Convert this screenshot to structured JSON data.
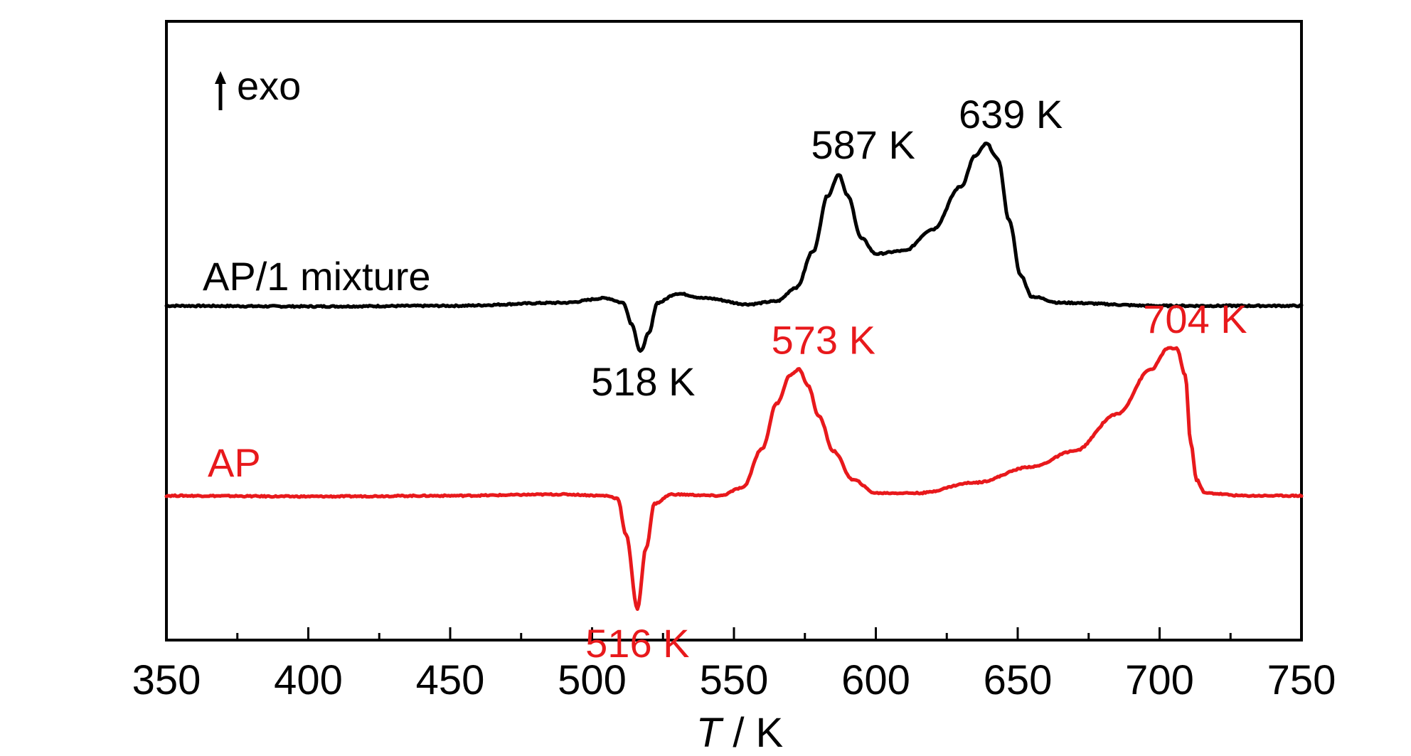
{
  "chart_data": {
    "type": "line",
    "title": "",
    "xlabel_italic": "T",
    "xlabel_rest": " / K",
    "ylabel": "",
    "xlim": [
      350,
      750
    ],
    "xticks": [
      350,
      400,
      450,
      500,
      550,
      600,
      650,
      700,
      750
    ],
    "x_minor_step": 25,
    "grid": false,
    "legend": "none",
    "direction_note": "exo",
    "series": [
      {
        "name": "AP/1 mixture",
        "color": "#000000",
        "baseline": 0,
        "points": [
          [
            350,
            0
          ],
          [
            400,
            -0.2
          ],
          [
            450,
            0
          ],
          [
            490,
            1
          ],
          [
            505,
            2.5
          ],
          [
            511,
            1
          ],
          [
            514,
            -6
          ],
          [
            517,
            -15
          ],
          [
            520,
            -9
          ],
          [
            523,
            1
          ],
          [
            530,
            4
          ],
          [
            540,
            2.5
          ],
          [
            555,
            0.5
          ],
          [
            565,
            1.5
          ],
          [
            572,
            6
          ],
          [
            578,
            18
          ],
          [
            583,
            36
          ],
          [
            587,
            43
          ],
          [
            590,
            36
          ],
          [
            595,
            22
          ],
          [
            600,
            17
          ],
          [
            610,
            18
          ],
          [
            620,
            25
          ],
          [
            630,
            39
          ],
          [
            635,
            49
          ],
          [
            639,
            53
          ],
          [
            643,
            48
          ],
          [
            647,
            28
          ],
          [
            651,
            10
          ],
          [
            655,
            3
          ],
          [
            665,
            1
          ],
          [
            700,
            0
          ],
          [
            750,
            0
          ]
        ],
        "annotations": [
          {
            "x": 518,
            "label": "518 K",
            "type": "trough"
          },
          {
            "x": 587,
            "label": "587 K",
            "type": "peak"
          },
          {
            "x": 639,
            "label": "639 K",
            "type": "peak"
          }
        ]
      },
      {
        "name": "AP",
        "color": "#e8191c",
        "baseline": 0,
        "points": [
          [
            350,
            0
          ],
          [
            400,
            -0.3
          ],
          [
            450,
            0
          ],
          [
            490,
            0.5
          ],
          [
            505,
            0
          ],
          [
            509,
            -1
          ],
          [
            512,
            -15
          ],
          [
            516,
            -43
          ],
          [
            519,
            -20
          ],
          [
            522,
            -3
          ],
          [
            528,
            0.5
          ],
          [
            545,
            0
          ],
          [
            553,
            3
          ],
          [
            560,
            18
          ],
          [
            565,
            35
          ],
          [
            570,
            46
          ],
          [
            573,
            48
          ],
          [
            576,
            42
          ],
          [
            580,
            30
          ],
          [
            585,
            17
          ],
          [
            592,
            6
          ],
          [
            600,
            1
          ],
          [
            615,
            1
          ],
          [
            635,
            5
          ],
          [
            655,
            11
          ],
          [
            670,
            17
          ],
          [
            685,
            31
          ],
          [
            697,
            48
          ],
          [
            703,
            56
          ],
          [
            706,
            56
          ],
          [
            709,
            46
          ],
          [
            711,
            20
          ],
          [
            713,
            6
          ],
          [
            716,
            1
          ],
          [
            730,
            0
          ],
          [
            750,
            0
          ]
        ],
        "annotations": [
          {
            "x": 516,
            "label": "516 K",
            "type": "trough"
          },
          {
            "x": 573,
            "label": "573 K",
            "type": "peak"
          },
          {
            "x": 704,
            "label": "704 K",
            "type": "peak"
          }
        ]
      }
    ]
  }
}
